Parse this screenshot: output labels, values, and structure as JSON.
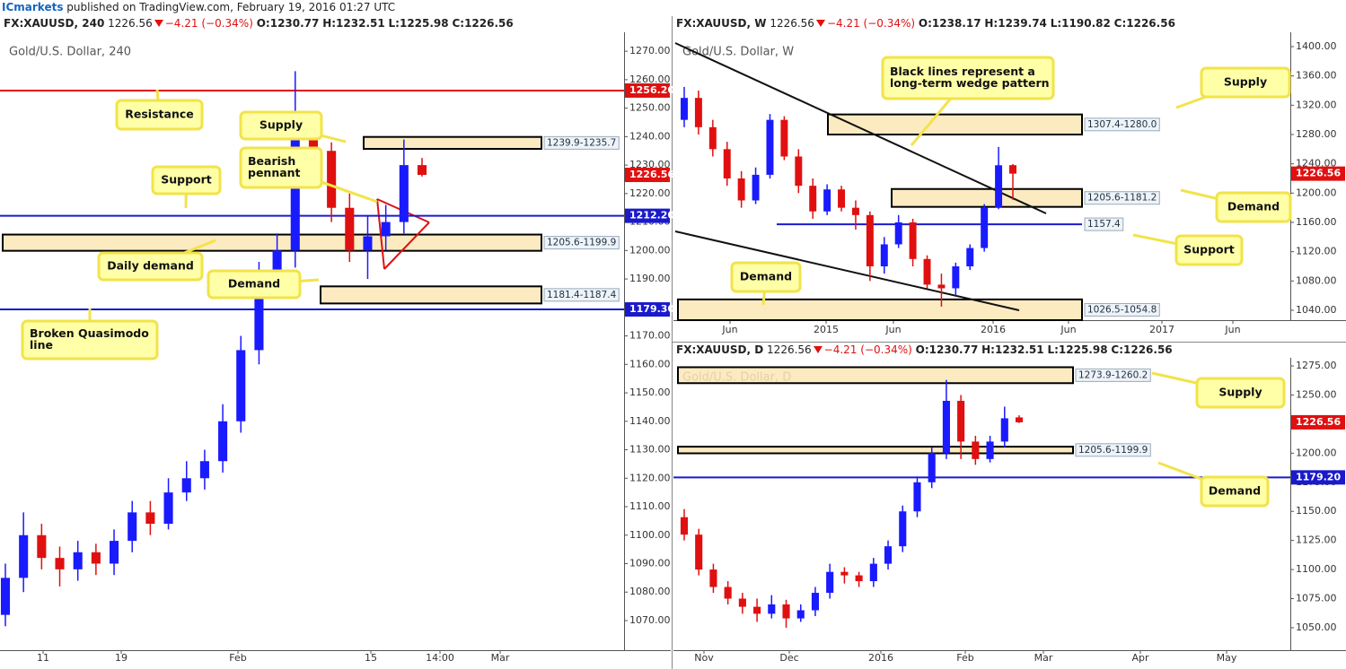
{
  "header": {
    "brand": "ICmarkets",
    "published": "published on TradingView.com, February 19, 2016 01:27 UTC"
  },
  "chart_data": [
    {
      "type": "candlestick",
      "title": "Gold/U.S. Dollar, 240",
      "header": {
        "symbol": "FX:XAUUSD, 240",
        "last": "1226.56",
        "change": "−4.21 (−0.34%)",
        "ohlc": [
          "O:1230.77",
          "H:1232.51",
          "L:1225.98",
          "C:1226.56"
        ]
      },
      "xticks": [
        "11",
        "19",
        "Feb",
        "15",
        "14:00",
        "Mar"
      ],
      "ylim": [
        1059.6,
        1275.4
      ],
      "yticks": [
        {
          "value": 1070,
          "label": "1070.00"
        },
        {
          "value": 1080,
          "label": "1080.00"
        },
        {
          "value": 1090,
          "label": "1090.00"
        },
        {
          "value": 1100,
          "label": "1100.00"
        },
        {
          "value": 1110,
          "label": "1110.00"
        },
        {
          "value": 1120,
          "label": "1120.00"
        },
        {
          "value": 1130,
          "label": "1130.00"
        },
        {
          "value": 1140,
          "label": "1140.00"
        },
        {
          "value": 1150,
          "label": "1150.00"
        },
        {
          "value": 1160,
          "label": "1160.00"
        },
        {
          "value": 1170,
          "label": "1170.00"
        },
        {
          "value": 1180,
          "label": "1180.00"
        },
        {
          "value": 1190,
          "label": "1190.00"
        },
        {
          "value": 1200,
          "label": "1200.00"
        },
        {
          "value": 1210,
          "label": "1210.00"
        },
        {
          "value": 1220,
          "label": "1220.00"
        },
        {
          "value": 1230,
          "label": "1230.00"
        },
        {
          "value": 1240,
          "label": "1240.00"
        },
        {
          "value": 1250,
          "label": "1250.00"
        },
        {
          "value": 1260,
          "label": "1260.00"
        },
        {
          "value": 1270,
          "label": "1270.00"
        }
      ],
      "up_color": "#1a1aff",
      "down_color": "#e01010",
      "open": [
        1072,
        1085,
        1100,
        1092,
        1088,
        1094,
        1090,
        1098,
        1108,
        1104,
        1115,
        1120,
        1126,
        1140,
        1165,
        1190,
        1200,
        1245,
        1235,
        1215,
        1200,
        1205,
        1210,
        1230
      ],
      "high": [
        1090,
        1108,
        1104,
        1096,
        1098,
        1097,
        1102,
        1112,
        1112,
        1120,
        1126,
        1130,
        1146,
        1170,
        1196,
        1206,
        1263,
        1248,
        1238,
        1220,
        1212,
        1216,
        1239,
        1232.51
      ],
      "low": [
        1068,
        1080,
        1088,
        1082,
        1084,
        1086,
        1086,
        1094,
        1100,
        1102,
        1112,
        1116,
        1122,
        1136,
        1160,
        1183,
        1194,
        1228,
        1210,
        1196,
        1190,
        1200,
        1206,
        1225.98
      ],
      "close": [
        1085,
        1100,
        1092,
        1088,
        1094,
        1090,
        1098,
        1108,
        1104,
        1115,
        1120,
        1126,
        1140,
        1165,
        1190,
        1200,
        1245,
        1235,
        1215,
        1200,
        1205,
        1210,
        1230,
        1226.56
      ],
      "last_price": 1226.56,
      "zones": [
        {
          "high": 1239.9,
          "low": 1235.7,
          "label": "1239.9-1235.7"
        },
        {
          "high": 1205.6,
          "low": 1199.9,
          "label": "1205.6-1199.9"
        },
        {
          "high": 1187.4,
          "low": 1181.4,
          "label": "1181.4-1187.4"
        }
      ],
      "lines": [
        {
          "value": 1256.2,
          "label": "1256.20",
          "color": "#e01010"
        },
        {
          "value": 1212.2,
          "label": "1212.20",
          "color": "#1a1acc"
        },
        {
          "value": 1179.3,
          "label": "1179.30",
          "color": "#1a1acc"
        }
      ],
      "annotations": [
        {
          "text": [
            "Resistance"
          ]
        },
        {
          "text": [
            "Supply"
          ]
        },
        {
          "text": [
            "Support"
          ]
        },
        {
          "text": [
            "Bearish",
            "pennant"
          ]
        },
        {
          "text": [
            "Daily demand"
          ]
        },
        {
          "text": [
            "Demand"
          ]
        },
        {
          "text": [
            "Broken Quasimodo",
            "line"
          ]
        }
      ]
    },
    {
      "type": "candlestick",
      "title": "Gold/U.S. Dollar, W",
      "header": {
        "symbol": "FX:XAUUSD, W",
        "last": "1226.56",
        "change": "−4.21 (−0.34%)",
        "ohlc": [
          "O:1238.17",
          "H:1239.74",
          "L:1190.82",
          "C:1226.56"
        ]
      },
      "xticks": [
        "Jun",
        "2015",
        "Jun",
        "2016",
        "Jun",
        "2017",
        "Jun"
      ],
      "ylim": [
        1026.5,
        1414.7
      ],
      "yticks": [
        {
          "value": 1040,
          "label": "1040.00"
        },
        {
          "value": 1080,
          "label": "1080.00"
        },
        {
          "value": 1120,
          "label": "1120.00"
        },
        {
          "value": 1160,
          "label": "1160.00"
        },
        {
          "value": 1200,
          "label": "1200.00"
        },
        {
          "value": 1240,
          "label": "1240.00"
        },
        {
          "value": 1280,
          "label": "1280.00"
        },
        {
          "value": 1320,
          "label": "1320.00"
        },
        {
          "value": 1360,
          "label": "1360.00"
        },
        {
          "value": 1400,
          "label": "1400.00"
        }
      ],
      "up_color": "#1a1aff",
      "down_color": "#e01010",
      "open": [
        1300,
        1330,
        1290,
        1260,
        1220,
        1190,
        1225,
        1300,
        1250,
        1210,
        1175,
        1205,
        1180,
        1170,
        1100,
        1130,
        1160,
        1110,
        1075,
        1070,
        1100,
        1125,
        1180,
        1238.17
      ],
      "high": [
        1345,
        1340,
        1300,
        1270,
        1230,
        1235,
        1308,
        1305,
        1260,
        1220,
        1212,
        1210,
        1190,
        1175,
        1140,
        1170,
        1165,
        1115,
        1090,
        1105,
        1130,
        1185,
        1263,
        1239.74
      ],
      "low": [
        1290,
        1280,
        1250,
        1210,
        1180,
        1185,
        1220,
        1245,
        1200,
        1165,
        1170,
        1175,
        1150,
        1080,
        1090,
        1125,
        1100,
        1070,
        1045,
        1060,
        1095,
        1120,
        1178,
        1190.82
      ],
      "close": [
        1330,
        1290,
        1260,
        1220,
        1190,
        1225,
        1300,
        1250,
        1210,
        1175,
        1205,
        1180,
        1170,
        1100,
        1130,
        1160,
        1110,
        1075,
        1070,
        1100,
        1125,
        1180,
        1238,
        1226.56
      ],
      "last_price": 1226.56,
      "zones": [
        {
          "high": 1307.4,
          "low": 1280.0,
          "label": "1307.4-1280.0"
        },
        {
          "high": 1205.6,
          "low": 1181.2,
          "label": "1205.6-1181.2"
        },
        {
          "high": 1054.8,
          "low": 1026.5,
          "label": "1026.5-1054.8"
        }
      ],
      "lines": [
        {
          "value": 1157.4,
          "label": "1157.4",
          "color": "#1a1acc"
        }
      ],
      "annotations": [
        {
          "text": [
            "Black lines represent a",
            "long-term wedge pattern"
          ]
        },
        {
          "text": [
            "Supply"
          ]
        },
        {
          "text": [
            "Demand"
          ]
        },
        {
          "text": [
            "Support"
          ]
        },
        {
          "text": [
            "Demand"
          ]
        }
      ]
    },
    {
      "type": "candlestick",
      "title": "Gold/U.S. Dollar, D",
      "header": {
        "symbol": "FX:XAUUSD, D",
        "last": "1226.56",
        "change": "−4.21 (−0.34%)",
        "ohlc": [
          "O:1230.77",
          "H:1232.51",
          "L:1225.98",
          "C:1226.56"
        ]
      },
      "xticks": [
        "Nov",
        "Dec",
        "2016",
        "Feb",
        "Mar",
        "Apr",
        "May"
      ],
      "ylim": [
        1030.7,
        1278.9
      ],
      "yticks": [
        {
          "value": 1050,
          "label": "1050.00"
        },
        {
          "value": 1075,
          "label": "1075.00"
        },
        {
          "value": 1100,
          "label": "1100.00"
        },
        {
          "value": 1125,
          "label": "1125.00"
        },
        {
          "value": 1150,
          "label": "1150.00"
        },
        {
          "value": 1175,
          "label": "1175.00"
        },
        {
          "value": 1200,
          "label": "1200.00"
        },
        {
          "value": 1225,
          "label": "1225.00"
        },
        {
          "value": 1250,
          "label": "1250.00"
        },
        {
          "value": 1275,
          "label": "1275.00"
        }
      ],
      "up_color": "#1a1aff",
      "down_color": "#e01010",
      "open": [
        1145,
        1130,
        1100,
        1085,
        1075,
        1068,
        1062,
        1070,
        1058,
        1065,
        1080,
        1098,
        1095,
        1090,
        1105,
        1120,
        1150,
        1175,
        1200,
        1245,
        1210,
        1195,
        1210,
        1230.77
      ],
      "high": [
        1152,
        1135,
        1105,
        1090,
        1080,
        1075,
        1078,
        1074,
        1070,
        1085,
        1105,
        1102,
        1098,
        1110,
        1125,
        1155,
        1180,
        1205,
        1263,
        1250,
        1215,
        1215,
        1240,
        1232.51
      ],
      "low": [
        1125,
        1095,
        1080,
        1070,
        1062,
        1055,
        1058,
        1050,
        1055,
        1060,
        1075,
        1088,
        1085,
        1085,
        1100,
        1115,
        1145,
        1170,
        1195,
        1195,
        1190,
        1192,
        1205,
        1225.98
      ],
      "close": [
        1130,
        1100,
        1085,
        1075,
        1068,
        1062,
        1070,
        1058,
        1065,
        1080,
        1098,
        1095,
        1090,
        1105,
        1120,
        1150,
        1175,
        1200,
        1245,
        1210,
        1195,
        1210,
        1230,
        1226.56
      ],
      "last_price": 1226.56,
      "zones": [
        {
          "high": 1273.9,
          "low": 1260.2,
          "label": "1273.9-1260.2"
        },
        {
          "high": 1205.6,
          "low": 1199.9,
          "label": "1205.6-1199.9"
        }
      ],
      "lines": [
        {
          "value": 1179.2,
          "label": "1179.20",
          "color": "#1a1acc"
        }
      ],
      "annotations": [
        {
          "text": [
            "Supply"
          ]
        },
        {
          "text": [
            "Demand"
          ]
        }
      ]
    }
  ]
}
